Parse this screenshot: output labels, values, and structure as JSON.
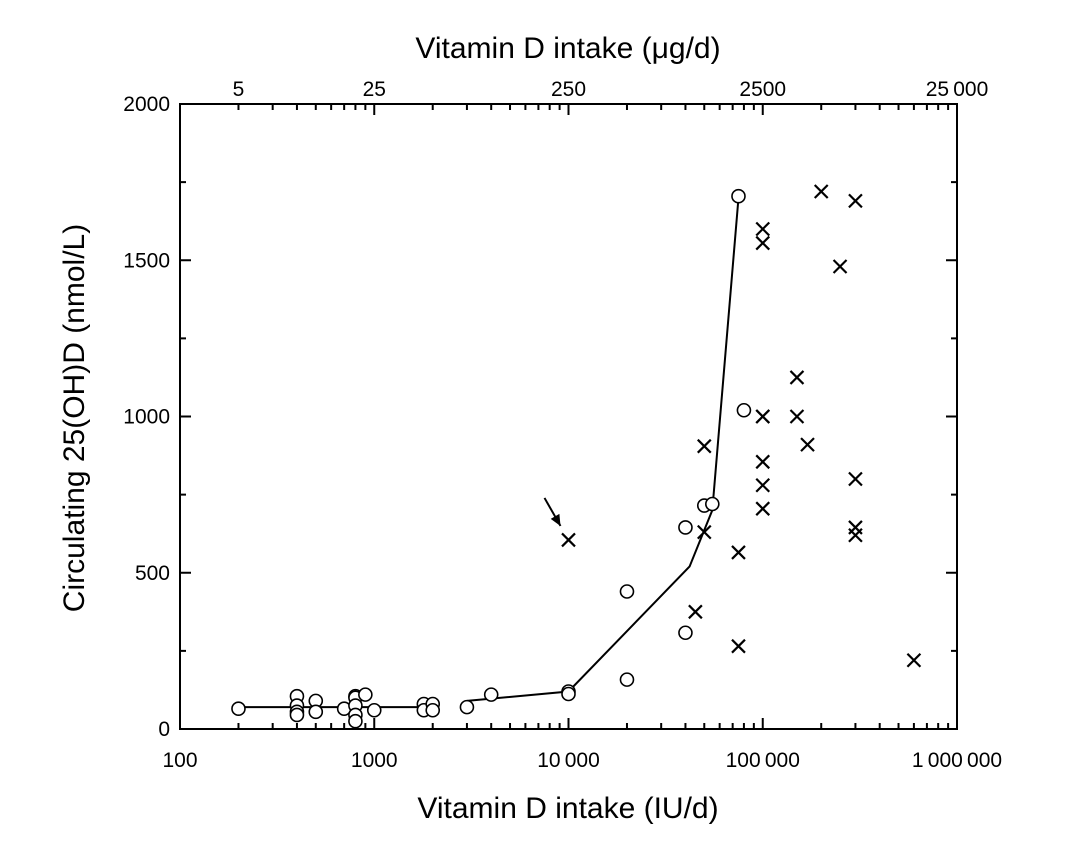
{
  "chart_data": {
    "type": "scatter",
    "title": "",
    "xlabel": "Vitamin D intake (IU/d)",
    "x2label": "Vitamin D intake (μg/d)",
    "ylabel": "Circulating 25(OH)D (nmol/L)",
    "x_scale": "log",
    "xlim": [
      100,
      1000000
    ],
    "ylim": [
      0,
      2000
    ],
    "x_ticks": [
      {
        "value": 100,
        "label": "100"
      },
      {
        "value": 1000,
        "label": "1000"
      },
      {
        "value": 10000,
        "label": "10 000"
      },
      {
        "value": 100000,
        "label": "100 000"
      },
      {
        "value": 1000000,
        "label": "1 000 000"
      }
    ],
    "x2_ticks": [
      {
        "value": 200,
        "label": "5"
      },
      {
        "value": 1000,
        "label": "25"
      },
      {
        "value": 10000,
        "label": "250"
      },
      {
        "value": 100000,
        "label": "2500"
      },
      {
        "value": 1000000,
        "label": "25 000"
      }
    ],
    "y_ticks": [
      {
        "value": 0,
        "label": "0"
      },
      {
        "value": 500,
        "label": "500"
      },
      {
        "value": 1000,
        "label": "1000"
      },
      {
        "value": 1500,
        "label": "1500"
      },
      {
        "value": 2000,
        "label": "2000"
      }
    ],
    "grid": false,
    "series": [
      {
        "name": "circles",
        "marker": "circle",
        "points": [
          [
            200,
            65
          ],
          [
            400,
            105
          ],
          [
            400,
            75
          ],
          [
            400,
            55
          ],
          [
            400,
            45
          ],
          [
            500,
            90
          ],
          [
            500,
            55
          ],
          [
            700,
            65
          ],
          [
            800,
            105
          ],
          [
            800,
            100
          ],
          [
            800,
            75
          ],
          [
            800,
            45
          ],
          [
            800,
            25
          ],
          [
            900,
            110
          ],
          [
            1000,
            60
          ],
          [
            1800,
            80
          ],
          [
            1800,
            60
          ],
          [
            2000,
            80
          ],
          [
            2000,
            60
          ],
          [
            3000,
            70
          ],
          [
            4000,
            110
          ],
          [
            10000,
            120
          ],
          [
            10000,
            112
          ],
          [
            20000,
            440
          ],
          [
            20000,
            158
          ],
          [
            40000,
            645
          ],
          [
            40000,
            308
          ],
          [
            50000,
            715
          ],
          [
            55000,
            720
          ],
          [
            75000,
            1705
          ],
          [
            80000,
            1020
          ]
        ]
      },
      {
        "name": "crosses",
        "marker": "x",
        "points": [
          [
            10000,
            605
          ],
          [
            45000,
            375
          ],
          [
            50000,
            905
          ],
          [
            50000,
            630
          ],
          [
            75000,
            565
          ],
          [
            75000,
            265
          ],
          [
            100000,
            1600
          ],
          [
            100000,
            1555
          ],
          [
            100000,
            1000
          ],
          [
            100000,
            1000
          ],
          [
            100000,
            855
          ],
          [
            100000,
            780
          ],
          [
            100000,
            705
          ],
          [
            150000,
            1125
          ],
          [
            150000,
            1000
          ],
          [
            170000,
            910
          ],
          [
            200000,
            1720
          ],
          [
            250000,
            1480
          ],
          [
            300000,
            1690
          ],
          [
            300000,
            800
          ],
          [
            300000,
            645
          ],
          [
            300000,
            620
          ],
          [
            600000,
            220
          ]
        ]
      }
    ],
    "lines": [
      {
        "name": "curve-low",
        "points": [
          [
            200,
            70
          ],
          [
            2000,
            70
          ]
        ]
      },
      {
        "name": "curve-high",
        "points": [
          [
            3000,
            90
          ],
          [
            10000,
            120
          ],
          [
            42000,
            520
          ],
          [
            55000,
            700
          ],
          [
            75000,
            1700
          ]
        ]
      }
    ],
    "annotations": [
      {
        "type": "arrow",
        "target": [
          10000,
          605
        ],
        "from_direction": "upper-left"
      }
    ]
  }
}
